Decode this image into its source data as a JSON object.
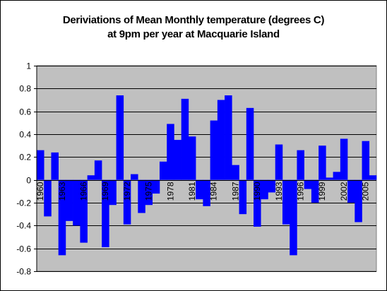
{
  "chart_data": {
    "type": "bar",
    "title_lines": [
      "Deriviations of Mean Monthly temperature (degrees C)",
      "at 9pm per year at Macquarie Island"
    ],
    "xlabel": "",
    "ylabel": "",
    "ylim": [
      -0.8,
      1
    ],
    "yticks": [
      "-0.8",
      "-0.6",
      "-0.4",
      "-0.2",
      "0",
      "0.2",
      "0.4",
      "0.6",
      "0.8",
      "1"
    ],
    "grid": true,
    "legend": "none",
    "plot_background": "#c0c0c0",
    "bar_color": "#0000ff",
    "categories": [
      "1960",
      "1961",
      "1962",
      "1963",
      "1964",
      "1965",
      "1966",
      "1967",
      "1968",
      "1969",
      "1970",
      "1971",
      "1972",
      "1973",
      "1974",
      "1975",
      "1976",
      "1977",
      "1978",
      "1979",
      "1980",
      "1981",
      "1982",
      "1983",
      "1984",
      "1985",
      "1986",
      "1987",
      "1988",
      "1989",
      "1990",
      "1991",
      "1992",
      "1993",
      "1994",
      "1995",
      "1996",
      "1997",
      "1998",
      "1999",
      "2000",
      "2001",
      "2002",
      "2003",
      "2004",
      "2005",
      "2006"
    ],
    "x_tick_labels": [
      "1960",
      "1963",
      "1966",
      "1969",
      "1972",
      "1975",
      "1978",
      "1981",
      "1984",
      "1987",
      "1990",
      "1993",
      "1996",
      "1999",
      "2002",
      "2005"
    ],
    "values": [
      0.26,
      -0.32,
      0.24,
      -0.66,
      -0.36,
      -0.4,
      -0.55,
      0.04,
      0.17,
      -0.59,
      -0.22,
      0.74,
      -0.39,
      0.05,
      -0.29,
      -0.22,
      -0.12,
      0.16,
      0.49,
      0.35,
      0.71,
      0.38,
      -0.17,
      -0.23,
      0.52,
      0.7,
      0.74,
      0.13,
      -0.3,
      0.63,
      -0.41,
      -0.17,
      -0.11,
      0.31,
      -0.39,
      -0.66,
      0.26,
      -0.08,
      -0.2,
      0.3,
      0.02,
      0.07,
      0.36,
      -0.2,
      -0.37,
      0.34,
      0.04
    ]
  }
}
